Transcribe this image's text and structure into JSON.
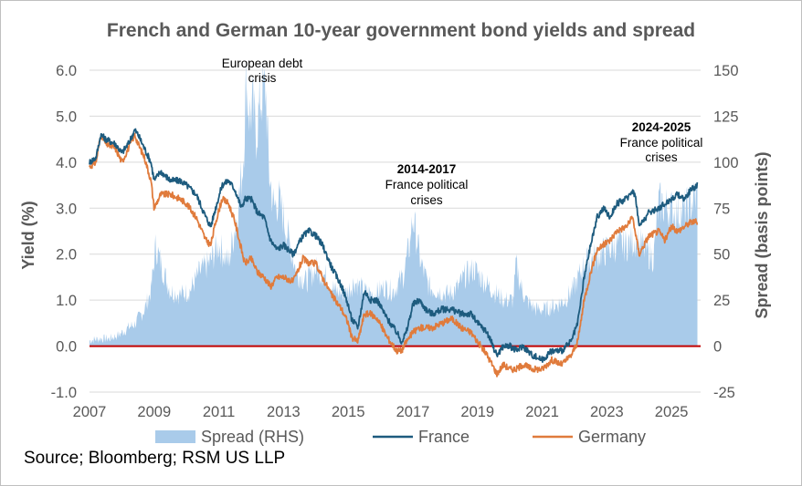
{
  "chart_data": {
    "type": "line+bar",
    "title": "French and German 10-year government bond yields and spread",
    "ylabel_left": "Yield (%)",
    "ylabel_right": "Spread (basis points)",
    "ylim_left": [
      -1.0,
      6.0
    ],
    "ylim_right": [
      -25,
      150
    ],
    "xlim": [
      2007,
      2025.9
    ],
    "x_ticks": [
      "2007",
      "2009",
      "2011",
      "2013",
      "2015",
      "2017",
      "2019",
      "2021",
      "2023",
      "2025"
    ],
    "y_ticks_left": [
      "-1.0",
      "0.0",
      "1.0",
      "2.0",
      "3.0",
      "4.0",
      "5.0",
      "6.0"
    ],
    "y_ticks_right": [
      "-25",
      "0",
      "25",
      "50",
      "75",
      "100",
      "125",
      "150"
    ],
    "grid": true,
    "zero_line": {
      "value": 0,
      "color": "#c00000"
    },
    "series": [
      {
        "name": "Spread (RHS)",
        "kind": "area",
        "axis": "right",
        "color": "#a9cbea",
        "x": [
          2007.0,
          2007.3,
          2007.6,
          2007.9,
          2008.2,
          2008.4,
          2008.7,
          2008.9,
          2009.05,
          2009.2,
          2009.5,
          2009.8,
          2010.1,
          2010.4,
          2010.7,
          2011.0,
          2011.3,
          2011.55,
          2011.75,
          2011.85,
          2011.95,
          2012.05,
          2012.15,
          2012.3,
          2012.45,
          2012.55,
          2012.7,
          2012.85,
          2013.0,
          2013.2,
          2013.4,
          2013.7,
          2014.0,
          2014.3,
          2014.6,
          2014.9,
          2015.2,
          2015.5,
          2015.8,
          2016.1,
          2016.4,
          2016.7,
          2016.9,
          2017.0,
          2017.1,
          2017.25,
          2017.5,
          2017.8,
          2018.1,
          2018.4,
          2018.6,
          2018.9,
          2019.2,
          2019.5,
          2019.8,
          2020.1,
          2020.2,
          2020.3,
          2020.5,
          2020.8,
          2021.1,
          2021.4,
          2021.7,
          2022.0,
          2022.3,
          2022.6,
          2022.8,
          2023.0,
          2023.3,
          2023.6,
          2023.9,
          2024.2,
          2024.45,
          2024.6,
          2024.9,
          2025.2,
          2025.5,
          2025.7,
          2025.8
        ],
        "values": [
          3,
          4,
          4,
          6,
          10,
          12,
          20,
          30,
          55,
          45,
          30,
          28,
          30,
          40,
          45,
          55,
          45,
          70,
          100,
          145,
          125,
          130,
          115,
          135,
          140,
          95,
          75,
          80,
          70,
          55,
          40,
          35,
          42,
          38,
          30,
          28,
          35,
          30,
          28,
          32,
          30,
          38,
          55,
          70,
          60,
          45,
          32,
          30,
          28,
          32,
          38,
          42,
          35,
          30,
          25,
          25,
          45,
          35,
          25,
          20,
          20,
          22,
          25,
          32,
          45,
          48,
          50,
          52,
          55,
          55,
          58,
          52,
          48,
          78,
          75,
          72,
          75,
          80,
          82
        ]
      },
      {
        "name": "France",
        "kind": "line",
        "axis": "left",
        "color": "#1d5b7e",
        "x": [
          2007.0,
          2007.2,
          2007.35,
          2007.5,
          2007.8,
          2008.0,
          2008.2,
          2008.4,
          2008.5,
          2008.7,
          2008.9,
          2009.0,
          2009.2,
          2009.5,
          2009.8,
          2010.0,
          2010.3,
          2010.6,
          2010.75,
          2010.9,
          2011.1,
          2011.3,
          2011.5,
          2011.7,
          2011.8,
          2012.0,
          2012.2,
          2012.4,
          2012.6,
          2012.8,
          2013.0,
          2013.3,
          2013.6,
          2013.8,
          2014.0,
          2014.2,
          2014.5,
          2014.8,
          2015.0,
          2015.1,
          2015.3,
          2015.5,
          2015.7,
          2015.9,
          2016.2,
          2016.5,
          2016.65,
          2016.8,
          2017.0,
          2017.2,
          2017.4,
          2017.6,
          2017.9,
          2018.2,
          2018.5,
          2018.8,
          2019.0,
          2019.3,
          2019.6,
          2019.8,
          2020.0,
          2020.2,
          2020.4,
          2020.7,
          2021.0,
          2021.3,
          2021.6,
          2021.9,
          2022.1,
          2022.3,
          2022.5,
          2022.7,
          2022.9,
          2023.1,
          2023.3,
          2023.6,
          2023.8,
          2023.9,
          2024.0,
          2024.3,
          2024.6,
          2024.8,
          2025.0,
          2025.2,
          2025.4,
          2025.6,
          2025.8
        ],
        "values": [
          4.0,
          4.1,
          4.6,
          4.5,
          4.4,
          4.2,
          4.4,
          4.7,
          4.6,
          4.3,
          4.0,
          3.6,
          3.8,
          3.6,
          3.6,
          3.5,
          3.3,
          2.8,
          2.6,
          3.0,
          3.5,
          3.6,
          3.4,
          3.0,
          3.2,
          3.2,
          2.9,
          2.8,
          2.3,
          2.1,
          2.2,
          2.0,
          2.4,
          2.5,
          2.4,
          2.2,
          1.7,
          1.3,
          0.9,
          0.6,
          0.4,
          1.2,
          1.0,
          1.0,
          0.6,
          0.3,
          0.1,
          0.3,
          0.9,
          1.0,
          0.8,
          0.7,
          0.8,
          0.8,
          0.7,
          0.7,
          0.5,
          0.3,
          -0.2,
          0.0,
          0.0,
          -0.1,
          0.0,
          -0.2,
          -0.3,
          -0.1,
          -0.1,
          0.1,
          0.5,
          1.5,
          2.2,
          2.8,
          3.0,
          2.8,
          3.1,
          3.2,
          3.4,
          3.2,
          2.6,
          2.9,
          3.0,
          3.1,
          3.2,
          3.3,
          3.2,
          3.4,
          3.5
        ]
      },
      {
        "name": "Germany",
        "kind": "line",
        "axis": "left",
        "color": "#e07b3c",
        "x": [
          2007.0,
          2007.2,
          2007.35,
          2007.5,
          2007.8,
          2008.0,
          2008.2,
          2008.4,
          2008.5,
          2008.7,
          2008.9,
          2009.0,
          2009.2,
          2009.5,
          2009.8,
          2010.0,
          2010.3,
          2010.6,
          2010.75,
          2010.9,
          2011.1,
          2011.3,
          2011.5,
          2011.7,
          2011.8,
          2012.0,
          2012.2,
          2012.4,
          2012.6,
          2012.8,
          2013.0,
          2013.3,
          2013.6,
          2013.8,
          2014.0,
          2014.2,
          2014.5,
          2014.8,
          2015.0,
          2015.1,
          2015.3,
          2015.5,
          2015.7,
          2015.9,
          2016.2,
          2016.5,
          2016.65,
          2016.8,
          2017.0,
          2017.2,
          2017.4,
          2017.6,
          2017.9,
          2018.2,
          2018.5,
          2018.8,
          2019.0,
          2019.3,
          2019.6,
          2019.8,
          2020.0,
          2020.2,
          2020.4,
          2020.7,
          2021.0,
          2021.3,
          2021.6,
          2021.9,
          2022.1,
          2022.3,
          2022.5,
          2022.7,
          2022.9,
          2023.1,
          2023.3,
          2023.6,
          2023.8,
          2023.9,
          2024.0,
          2024.3,
          2024.6,
          2024.8,
          2025.0,
          2025.2,
          2025.4,
          2025.6,
          2025.8
        ],
        "values": [
          3.9,
          4.0,
          4.6,
          4.4,
          4.3,
          4.0,
          4.3,
          4.6,
          4.4,
          4.1,
          3.6,
          3.0,
          3.3,
          3.3,
          3.2,
          3.1,
          2.8,
          2.3,
          2.2,
          2.7,
          3.2,
          3.1,
          2.7,
          2.1,
          1.8,
          1.9,
          1.6,
          1.5,
          1.3,
          1.5,
          1.5,
          1.4,
          1.9,
          1.8,
          1.8,
          1.5,
          1.1,
          0.8,
          0.5,
          0.2,
          0.1,
          0.7,
          0.7,
          0.6,
          0.2,
          -0.1,
          -0.1,
          0.1,
          0.3,
          0.4,
          0.4,
          0.4,
          0.5,
          0.6,
          0.4,
          0.3,
          0.1,
          -0.2,
          -0.6,
          -0.4,
          -0.5,
          -0.5,
          -0.4,
          -0.5,
          -0.5,
          -0.3,
          -0.4,
          -0.2,
          0.1,
          1.0,
          1.6,
          2.1,
          2.2,
          2.3,
          2.5,
          2.6,
          2.8,
          2.4,
          2.0,
          2.4,
          2.5,
          2.3,
          2.6,
          2.5,
          2.6,
          2.7,
          2.7
        ]
      }
    ],
    "annotations": [
      {
        "lines": [
          "European debt",
          "crisis"
        ],
        "bold": false
      },
      {
        "lines": [
          "2014-2017"
        ],
        "bold": true
      },
      {
        "lines": [
          "France political",
          "crises"
        ],
        "bold": false
      },
      {
        "lines": [
          "2024-2025"
        ],
        "bold": true
      },
      {
        "lines": [
          "France political",
          "crises"
        ],
        "bold": false
      }
    ]
  },
  "source": "Source; Bloomberg; RSM US LLP"
}
